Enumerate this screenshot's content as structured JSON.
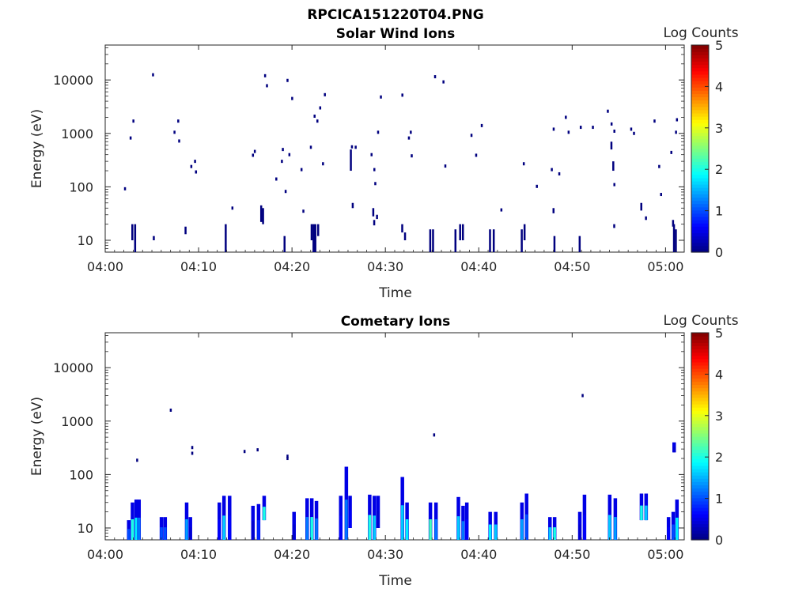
{
  "figure": {
    "title": "RPCICA151220T04.PNG"
  },
  "colormap": [
    "#00007f",
    "#0000ff",
    "#007fff",
    "#00ffff",
    "#7fff7f",
    "#ffff00",
    "#ff7f00",
    "#ff0000",
    "#7f0000"
  ],
  "chart_data": [
    {
      "type": "heatmap",
      "title": "Solar Wind Ions",
      "xlabel": "Time",
      "ylabel": "Energy (eV)",
      "x_scale": "time",
      "x_ticks": [
        "04:00",
        "04:10",
        "04:20",
        "04:30",
        "04:40",
        "04:50",
        "05:00"
      ],
      "xlim_minutes": [
        0,
        62
      ],
      "y_scale": "log",
      "y_ticks": [
        "10",
        "100",
        "1000",
        "10000"
      ],
      "ylim": [
        6,
        45000
      ],
      "colorbar": {
        "label": "Log Counts",
        "ticks": [
          "0",
          "1",
          "2",
          "3",
          "4",
          "5"
        ],
        "range": [
          0,
          5
        ]
      },
      "points_minutes_eV": [
        [
          2.1,
          92
        ],
        [
          2.7,
          820
        ],
        [
          3.0,
          1700
        ],
        [
          5.1,
          12500
        ],
        [
          7.4,
          1050
        ],
        [
          7.8,
          1700
        ],
        [
          7.9,
          720
        ],
        [
          9.2,
          240
        ],
        [
          9.6,
          300
        ],
        [
          9.7,
          190
        ],
        [
          13.6,
          40
        ],
        [
          15.8,
          390
        ],
        [
          16.0,
          460
        ],
        [
          17.1,
          12000
        ],
        [
          17.3,
          7800
        ],
        [
          18.3,
          140
        ],
        [
          18.9,
          300
        ],
        [
          19.0,
          500
        ],
        [
          19.3,
          82
        ],
        [
          19.5,
          9800
        ],
        [
          19.7,
          400
        ],
        [
          20.0,
          4500
        ],
        [
          21.0,
          210
        ],
        [
          21.2,
          35
        ],
        [
          22.0,
          550
        ],
        [
          22.4,
          2100
        ],
        [
          22.7,
          1700
        ],
        [
          23.0,
          3000
        ],
        [
          23.3,
          270
        ],
        [
          23.5,
          5300
        ],
        [
          26.4,
          560
        ],
        [
          26.8,
          550
        ],
        [
          28.5,
          400
        ],
        [
          28.8,
          210
        ],
        [
          28.9,
          115
        ],
        [
          29.2,
          1050
        ],
        [
          29.5,
          4800
        ],
        [
          31.8,
          5200
        ],
        [
          32.5,
          820
        ],
        [
          32.7,
          1050
        ],
        [
          32.8,
          380
        ],
        [
          35.3,
          11500
        ],
        [
          36.2,
          9200
        ],
        [
          36.4,
          245
        ],
        [
          39.2,
          920
        ],
        [
          39.7,
          390
        ],
        [
          40.3,
          1400
        ],
        [
          42.4,
          37
        ],
        [
          44.8,
          270
        ],
        [
          46.2,
          102
        ],
        [
          47.8,
          210
        ],
        [
          48.0,
          1200
        ],
        [
          48.6,
          175
        ],
        [
          49.3,
          2000
        ],
        [
          49.6,
          1050
        ],
        [
          50.9,
          1300
        ],
        [
          52.2,
          1300
        ],
        [
          53.8,
          2600
        ],
        [
          54.2,
          1500
        ],
        [
          54.5,
          1100
        ],
        [
          54.5,
          110
        ],
        [
          56.3,
          1200
        ],
        [
          56.6,
          1000
        ],
        [
          58.8,
          1700
        ],
        [
          59.3,
          240
        ],
        [
          59.5,
          72
        ],
        [
          60.6,
          440
        ],
        [
          61.1,
          1050
        ],
        [
          61.2,
          1800
        ]
      ],
      "bars_minutes_eV": [
        [
          2.9,
          10,
          20
        ],
        [
          3.2,
          6,
          20
        ],
        [
          5.2,
          10,
          12
        ],
        [
          8.6,
          13,
          18
        ],
        [
          12.9,
          6,
          20
        ],
        [
          16.7,
          22,
          45
        ],
        [
          16.9,
          20,
          40
        ],
        [
          19.2,
          6,
          12
        ],
        [
          22.1,
          10,
          20
        ],
        [
          22.3,
          6,
          20
        ],
        [
          22.5,
          6,
          20
        ],
        [
          22.8,
          12,
          20
        ],
        [
          26.3,
          200,
          500
        ],
        [
          26.5,
          40,
          50
        ],
        [
          28.7,
          28,
          40
        ],
        [
          28.8,
          19,
          24
        ],
        [
          29.1,
          25,
          30
        ],
        [
          31.8,
          14,
          20
        ],
        [
          32.1,
          10,
          14
        ],
        [
          34.8,
          6,
          16
        ],
        [
          35.1,
          6,
          16
        ],
        [
          37.5,
          6,
          16
        ],
        [
          38.0,
          10,
          20
        ],
        [
          38.3,
          10,
          20
        ],
        [
          41.2,
          6,
          16
        ],
        [
          41.6,
          6,
          16
        ],
        [
          44.6,
          6,
          16
        ],
        [
          44.9,
          10,
          20
        ],
        [
          48.0,
          32,
          40
        ],
        [
          48.1,
          6,
          12
        ],
        [
          50.8,
          6,
          12
        ],
        [
          54.2,
          500,
          700
        ],
        [
          54.4,
          200,
          300
        ],
        [
          54.5,
          17,
          20
        ],
        [
          57.4,
          36,
          50
        ],
        [
          57.9,
          24,
          28
        ],
        [
          60.8,
          18,
          24
        ],
        [
          60.9,
          6,
          20
        ],
        [
          61.1,
          6,
          16
        ]
      ]
    },
    {
      "type": "heatmap",
      "title": "Cometary Ions",
      "xlabel": "Time",
      "ylabel": "Energy (eV)",
      "x_scale": "time",
      "x_ticks": [
        "04:00",
        "04:10",
        "04:20",
        "04:30",
        "04:40",
        "04:50",
        "05:00"
      ],
      "xlim_minutes": [
        0,
        62
      ],
      "y_scale": "log",
      "y_ticks": [
        "10",
        "100",
        "1000",
        "10000"
      ],
      "ylim": [
        6,
        45000
      ],
      "colorbar": {
        "label": "Log Counts",
        "ticks": [
          "0",
          "1",
          "2",
          "3",
          "4",
          "5"
        ],
        "range": [
          0,
          5
        ]
      },
      "points_minutes_eV": [
        [
          3.4,
          185
        ],
        [
          7.0,
          1600
        ],
        [
          9.3,
          320
        ],
        [
          9.3,
          250
        ],
        [
          14.9,
          270
        ],
        [
          16.3,
          290
        ],
        [
          19.5,
          220
        ],
        [
          19.5,
          200
        ],
        [
          35.2,
          550
        ],
        [
          51.1,
          3000
        ]
      ],
      "columns_minutes_eV_log": [
        [
          2.5,
          6,
          14,
          1.0
        ],
        [
          2.9,
          6,
          30,
          2.0
        ],
        [
          3.3,
          6,
          34,
          1.8
        ],
        [
          3.6,
          6,
          34,
          1.2
        ],
        [
          6.0,
          6,
          16,
          1.0
        ],
        [
          6.4,
          6,
          16,
          1.0
        ],
        [
          8.7,
          6,
          30,
          1.4
        ],
        [
          9.1,
          6,
          16,
          0.4
        ],
        [
          12.2,
          6,
          30,
          0.6
        ],
        [
          12.7,
          6,
          40,
          1.6
        ],
        [
          13.3,
          6,
          40,
          0.6
        ],
        [
          15.8,
          6,
          26,
          0.4
        ],
        [
          16.4,
          6,
          28,
          0.8
        ],
        [
          17.0,
          14,
          40,
          2.0
        ],
        [
          20.2,
          6,
          20,
          0.4
        ],
        [
          21.6,
          6,
          36,
          1.2
        ],
        [
          22.1,
          6,
          36,
          2.0
        ],
        [
          22.6,
          6,
          32,
          1.2
        ],
        [
          25.2,
          6,
          40,
          0.6
        ],
        [
          25.8,
          6,
          140,
          1.2
        ],
        [
          26.2,
          10,
          40,
          0.6
        ],
        [
          28.3,
          6,
          42,
          2.0
        ],
        [
          28.8,
          6,
          40,
          1.6
        ],
        [
          29.2,
          10,
          40,
          0.4
        ],
        [
          31.8,
          6,
          90,
          1.6
        ],
        [
          32.3,
          6,
          30,
          1.8
        ],
        [
          34.8,
          6,
          30,
          2.2
        ],
        [
          35.4,
          6,
          30,
          1.2
        ],
        [
          37.8,
          6,
          38,
          1.6
        ],
        [
          38.3,
          6,
          26,
          1.2
        ],
        [
          38.7,
          6,
          30,
          0.6
        ],
        [
          41.2,
          6,
          20,
          1.8
        ],
        [
          41.8,
          6,
          20,
          1.6
        ],
        [
          44.6,
          6,
          30,
          1.4
        ],
        [
          45.1,
          6,
          44,
          1.0
        ],
        [
          47.6,
          6,
          16,
          1.6
        ],
        [
          48.1,
          6,
          16,
          2.0
        ],
        [
          50.8,
          6,
          20,
          0.4
        ],
        [
          51.3,
          6,
          42,
          0.6
        ],
        [
          54.0,
          6,
          42,
          1.6
        ],
        [
          54.6,
          6,
          36,
          1.4
        ],
        [
          57.4,
          14,
          44,
          2.0
        ],
        [
          57.9,
          14,
          44,
          1.6
        ],
        [
          60.3,
          6,
          16,
          0.6
        ],
        [
          60.8,
          6,
          20,
          1.0
        ],
        [
          61.2,
          6,
          34,
          1.8
        ],
        [
          60.9,
          260,
          400,
          0.4
        ]
      ]
    }
  ]
}
